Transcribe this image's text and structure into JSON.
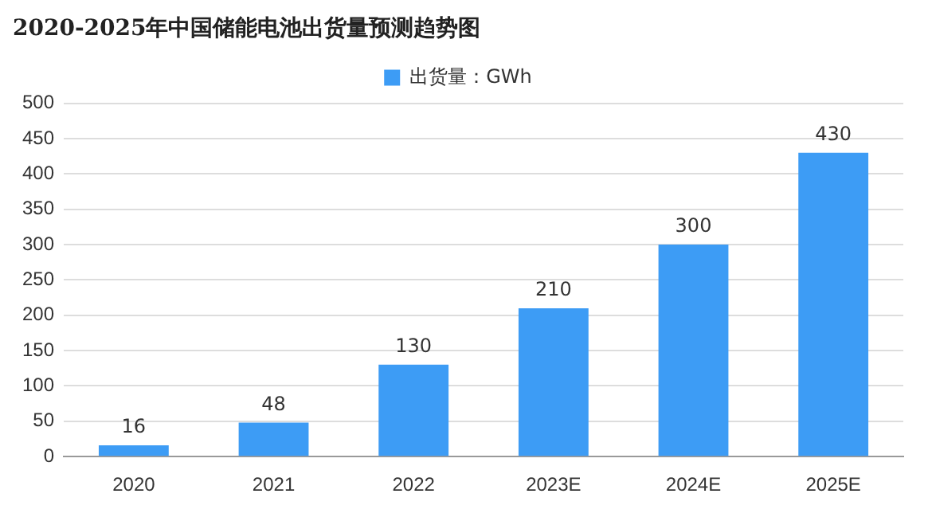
{
  "chart_data": {
    "type": "bar",
    "title": "2020-2025年中国储能电池出货量预测趋势图",
    "categories": [
      "2020",
      "2021",
      "2022",
      "2023E",
      "2024E",
      "2025E"
    ],
    "series": [
      {
        "name": "出货量：GWh",
        "color": "#3d9cf5",
        "values": [
          16,
          48,
          130,
          210,
          300,
          430
        ]
      }
    ],
    "ylim": [
      0,
      500
    ],
    "yticks": [
      0,
      50,
      100,
      150,
      200,
      250,
      300,
      350,
      400,
      450,
      500
    ],
    "grid": "y",
    "legend": "top",
    "data_labels": true
  }
}
